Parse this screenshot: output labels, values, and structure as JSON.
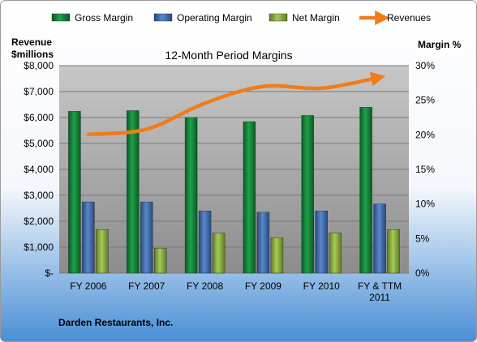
{
  "chart_data": {
    "type": "bar",
    "title": "12-Month Period Margins",
    "company": "Darden Restaurants, Inc.",
    "categories": [
      "FY 2006",
      "FY 2007",
      "FY 2008",
      "FY 2009",
      "FY 2010",
      "FY & TTM|2011"
    ],
    "series": [
      {
        "name": "Gross Margin",
        "axis": "right",
        "values": [
          23.4,
          23.5,
          22.5,
          21.9,
          22.8,
          24.0
        ],
        "color": "#0f7a32"
      },
      {
        "name": "Operating Margin",
        "axis": "right",
        "values": [
          10.3,
          10.3,
          9.0,
          8.8,
          9.0,
          10.0
        ],
        "color": "#3a66a8"
      },
      {
        "name": "Net Margin",
        "axis": "right",
        "values": [
          6.3,
          3.6,
          5.8,
          5.1,
          5.8,
          6.3
        ],
        "color": "#8fb13e"
      }
    ],
    "line_series": {
      "name": "Revenues",
      "axis": "left",
      "values": [
        5350,
        5550,
        6550,
        7200,
        7130,
        7550
      ],
      "color": "#f07c1a"
    },
    "left_axis": {
      "label_line1": "Revenue",
      "label_line2": "$millions",
      "ylim": [
        0,
        8000
      ],
      "ticks": [
        0,
        1000,
        2000,
        3000,
        4000,
        5000,
        6000,
        7000,
        8000
      ],
      "tick_labels": [
        "$-",
        "$1,000",
        "$2,000",
        "$3,000",
        "$4,000",
        "$5,000",
        "$6,000",
        "$7,000",
        "$8,000"
      ]
    },
    "right_axis": {
      "label": "Margin %",
      "ylim": [
        0,
        30
      ],
      "ticks": [
        0,
        5,
        10,
        15,
        20,
        25,
        30
      ],
      "tick_labels": [
        "0%",
        "5%",
        "10%",
        "15%",
        "20%",
        "25%",
        "30%"
      ]
    },
    "grid": true,
    "legend_position": "top"
  }
}
